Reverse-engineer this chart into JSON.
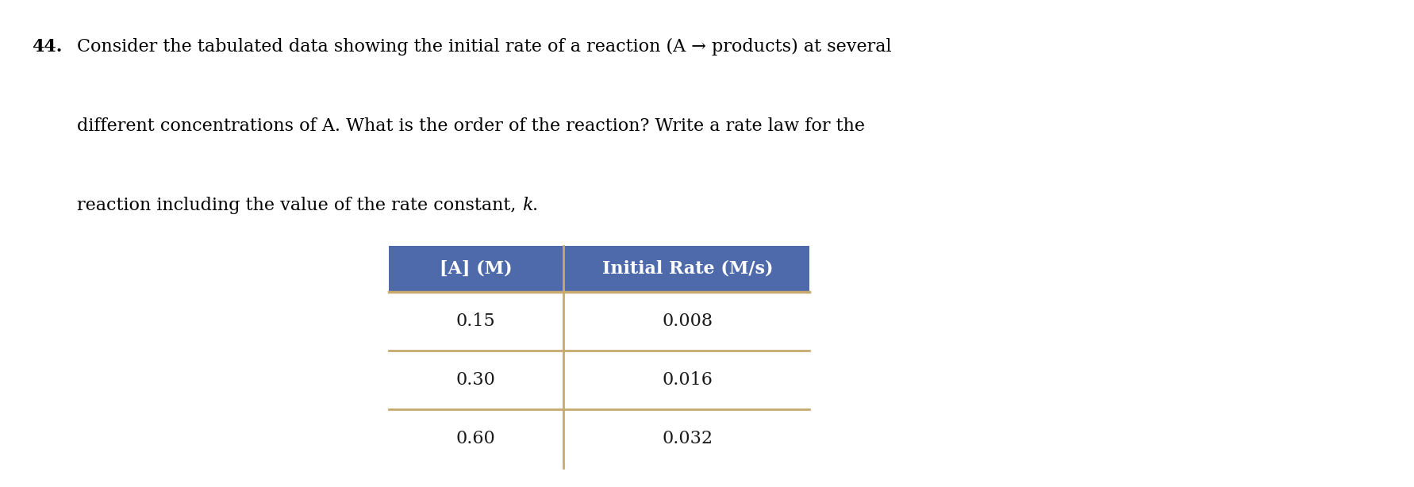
{
  "title_number": "44.",
  "line1": "Consider the tabulated data showing the initial rate of a reaction (A → products) at several",
  "line2": "different concentrations of A. What is the order of the reaction? Write a rate law for the",
  "line3_pre": "reaction including the value of the rate constant, ",
  "line3_italic": "k",
  "line3_end": ".",
  "col1_header": "[A] (M)",
  "col2_header": "Initial Rate (M/s)",
  "rows": [
    [
      "0.15",
      "0.008"
    ],
    [
      "0.30",
      "0.016"
    ],
    [
      "0.60",
      "0.032"
    ]
  ],
  "header_bg": "#4f6aab",
  "header_text": "#ffffff",
  "divider_color": "#c8a96e",
  "row_line_color": "#c8a96e",
  "body_text_color": "#1a1a1a",
  "background": "#ffffff",
  "text_fontsize": 16,
  "header_fontsize": 16,
  "number_bold_fontsize": 16
}
